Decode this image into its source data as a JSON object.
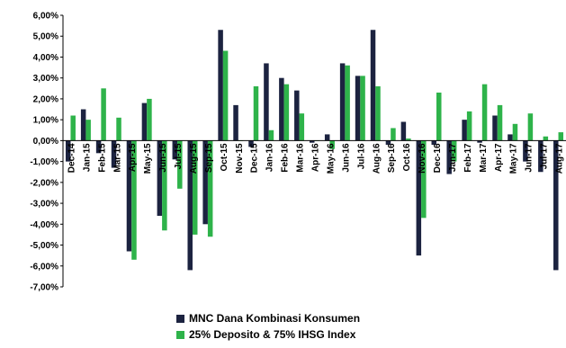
{
  "chart_data": {
    "type": "bar",
    "categories": [
      "Dec-14",
      "Jan-15",
      "Feb-15",
      "Mar-15",
      "Apr-15",
      "May-15",
      "Jun-15",
      "Jul-15",
      "Aug-15",
      "Sep-15",
      "Oct-15",
      "Nov-15",
      "Dec-15",
      "Jan-16",
      "Feb-16",
      "Mar-16",
      "Apr-16",
      "May-16",
      "Jun-16",
      "Jul-16",
      "Aug-16",
      "Sep-16",
      "Oct-16",
      "Nov-16",
      "Dec-16",
      "Jan-17",
      "Feb-17",
      "Mar-17",
      "Apr-17",
      "May-17",
      "Jun-17",
      "Jul-17",
      "Aug-17"
    ],
    "series": [
      {
        "name": "MNC Dana Kombinasi Konsumen",
        "color": "#1c2340",
        "values": [
          -1.0,
          1.5,
          -0.6,
          -1.3,
          -5.3,
          1.8,
          -3.6,
          -0.9,
          -6.2,
          -4.0,
          5.3,
          1.7,
          -0.3,
          3.7,
          3.0,
          2.4,
          -0.1,
          0.3,
          3.7,
          3.1,
          5.3,
          -0.2,
          0.9,
          -5.5,
          -0.2,
          -1.6,
          1.0,
          -0.1,
          1.2,
          0.3,
          -1.0,
          -1.5,
          -6.2
        ]
      },
      {
        "name": "25% Deposito & 75% IHSG Index",
        "color": "#2eb34a",
        "values": [
          1.2,
          1.0,
          2.5,
          1.1,
          -5.7,
          2.0,
          -4.3,
          -2.3,
          -4.5,
          -4.6,
          4.3,
          0.0,
          2.6,
          0.5,
          2.7,
          1.3,
          0.0,
          -0.4,
          3.6,
          3.1,
          2.6,
          0.6,
          0.1,
          -3.7,
          2.3,
          -1.0,
          1.4,
          2.7,
          1.7,
          0.8,
          1.3,
          0.2,
          0.4
        ]
      }
    ],
    "xlabel": "",
    "ylabel": "",
    "ylim": [
      -7.0,
      6.0
    ],
    "yticks": [
      "6,00%",
      "5,00%",
      "4,00%",
      "3,00%",
      "2,00%",
      "1,00%",
      "0,00%",
      "-1,00%",
      "-2,00%",
      "-3,00%",
      "-4,00%",
      "-5,00%",
      "-6,00%",
      "-7,00%"
    ],
    "grid": false,
    "legend_position": "bottom"
  }
}
